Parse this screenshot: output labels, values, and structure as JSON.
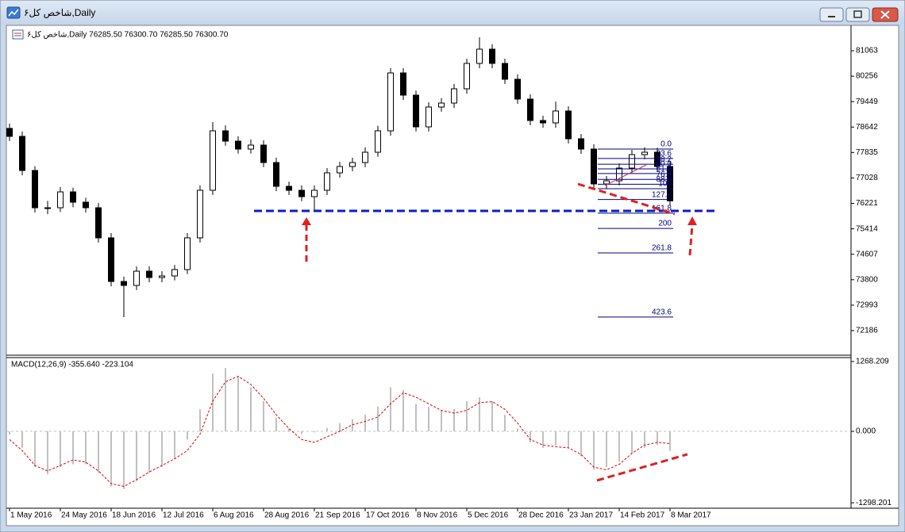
{
  "window": {
    "title": "شاخص کل۶,Daily"
  },
  "chart_data": [
    {
      "type": "candlestick",
      "header": "شاخص کل۶,Daily  76285.50 76300.70 76285.50 76300.70",
      "categories": [
        "1 May 2016",
        null,
        null,
        null,
        "24 May 2016",
        null,
        null,
        null,
        "18 Jun 2016",
        null,
        null,
        null,
        "12 Jul 2016",
        null,
        null,
        null,
        "6 Aug 2016",
        null,
        null,
        null,
        "28 Aug 2016",
        null,
        null,
        null,
        "21 Sep 2016",
        null,
        null,
        null,
        "17 Oct 2016",
        null,
        null,
        null,
        "8 Nov 2016",
        null,
        null,
        null,
        "5 Dec 2016",
        null,
        null,
        null,
        "28 Dec 2016",
        null,
        null,
        null,
        "23 Jan 2017",
        null,
        null,
        null,
        "14 Feb 2017",
        null,
        null,
        null,
        "8 Mar 2017"
      ],
      "open": [
        78600,
        78347,
        77265,
        76083,
        76083,
        76586,
        76259,
        76083,
        75128,
        73744,
        73619,
        74071,
        73870,
        73920,
        74122,
        75128,
        76637,
        78523,
        78196,
        77944,
        78070,
        77517,
        76762,
        76637,
        76435,
        76637,
        77190,
        77391,
        77517,
        77844,
        78523,
        80359,
        79655,
        78649,
        79277,
        79403,
        79856,
        80661,
        81113,
        80661,
        80158,
        79529,
        78850,
        78774,
        79152,
        78271,
        77944,
        76838,
        76938,
        77341,
        77768,
        77844,
        77391
      ],
      "high": [
        78750,
        78500,
        77400,
        76300,
        76740,
        76720,
        76400,
        76230,
        75280,
        73900,
        74220,
        74230,
        74070,
        74270,
        75280,
        76790,
        78800,
        78700,
        78350,
        78250,
        78220,
        77670,
        76910,
        76790,
        76790,
        77340,
        77540,
        77670,
        78000,
        78680,
        80510,
        80510,
        79800,
        79430,
        79560,
        80010,
        80810,
        81491,
        81270,
        80810,
        80310,
        79680,
        79000,
        79450,
        79300,
        78420,
        78100,
        77090,
        77490,
        77920,
        78000,
        77990,
        77540
      ],
      "low": [
        78200,
        77110,
        75930,
        75880,
        75950,
        76100,
        75930,
        74980,
        73590,
        72613,
        73470,
        73720,
        73720,
        73780,
        73980,
        74980,
        76490,
        78050,
        77800,
        77800,
        77370,
        76610,
        76490,
        76290,
        76000,
        76490,
        77040,
        77240,
        77370,
        77700,
        78370,
        79500,
        78500,
        78500,
        79130,
        79250,
        79700,
        80510,
        80510,
        80010,
        79380,
        78700,
        78620,
        78620,
        78120,
        77790,
        76690,
        76690,
        76790,
        77190,
        77620,
        77240,
        76150
      ],
      "close": [
        78347,
        77265,
        76083,
        76083,
        76586,
        76259,
        76083,
        75128,
        73744,
        73619,
        74071,
        73870,
        73920,
        74122,
        75128,
        76637,
        78523,
        78196,
        77944,
        78070,
        77517,
        76762,
        76637,
        76435,
        76637,
        77190,
        77391,
        77517,
        77844,
        78523,
        80359,
        79655,
        78649,
        79277,
        79403,
        79856,
        80661,
        81113,
        80661,
        80158,
        79529,
        78850,
        78774,
        79152,
        78271,
        77944,
        76838,
        76938,
        77341,
        77768,
        77844,
        77391,
        76301
      ],
      "color": "#000000",
      "ylim": [
        71431,
        81767
      ],
      "yticks": [
        81063,
        80256,
        79449,
        78642,
        77835,
        77028,
        76221,
        75414,
        74607,
        73800,
        72993,
        72186
      ],
      "fib_color": "#000080",
      "fib_levels": [
        {
          "label": "0.0",
          "price": 77944
        },
        {
          "label": "23.6",
          "price": 77647
        },
        {
          "label": "38.2",
          "price": 77463
        },
        {
          "label": "50.0",
          "price": 77315
        },
        {
          "label": "61.8",
          "price": 77167
        },
        {
          "label": "76.4",
          "price": 76983
        },
        {
          "label": "88.6",
          "price": 76829
        },
        {
          "label": "100",
          "price": 76686
        },
        {
          "label": "127.2",
          "price": 76344
        },
        {
          "label": "161.8",
          "price": 75909
        },
        {
          "label": "200",
          "price": 75428
        },
        {
          "label": "261.8",
          "price": 74651
        },
        {
          "label": "423.6",
          "price": 72615
        }
      ],
      "support_line": 75983,
      "support_color": "#0a1ec8"
    },
    {
      "type": "macd",
      "label": "MACD(12,26,9) -355.640 -223.104",
      "histogram": [
        -60,
        -300,
        -650,
        -780,
        -650,
        -600,
        -600,
        -750,
        -1000,
        -1050,
        -900,
        -750,
        -650,
        -500,
        -150,
        400,
        1050,
        1150,
        1000,
        800,
        550,
        250,
        50,
        -50,
        -20,
        60,
        150,
        220,
        300,
        450,
        800,
        750,
        500,
        450,
        380,
        400,
        550,
        620,
        550,
        300,
        50,
        -200,
        -300,
        -260,
        -300,
        -450,
        -700,
        -650,
        -550,
        -400,
        -300,
        -250,
        -355.64
      ],
      "histogram_color": "#c0c0c0",
      "signal": [
        -150,
        -350,
        -620,
        -720,
        -620,
        -520,
        -560,
        -720,
        -950,
        -1000,
        -880,
        -740,
        -620,
        -500,
        -350,
        -50,
        550,
        900,
        1000,
        850,
        600,
        300,
        50,
        -150,
        -200,
        -100,
        0,
        120,
        180,
        260,
        500,
        700,
        620,
        500,
        380,
        330,
        380,
        520,
        540,
        400,
        150,
        -150,
        -250,
        -280,
        -300,
        -420,
        -650,
        -700,
        -600,
        -400,
        -250,
        -200,
        -223.104
      ],
      "signal_color": "#e00000",
      "ylim": [
        -1383,
        1340
      ],
      "yticks": [
        1268.209,
        {
          "value": 0,
          "label": "0.000"
        },
        -1298.201
      ]
    }
  ]
}
